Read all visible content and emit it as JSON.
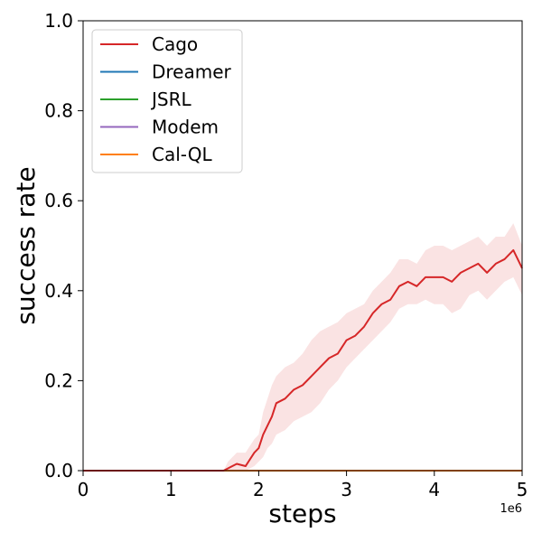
{
  "chart_data": {
    "type": "line",
    "xlabel": "steps",
    "ylabel": "success rate",
    "x_offset_label": "1e6",
    "xlim": [
      0,
      5
    ],
    "ylim": [
      0,
      1.0
    ],
    "x_ticks": [
      "0",
      "1",
      "2",
      "3",
      "4",
      "5"
    ],
    "y_ticks": [
      "0.0",
      "0.2",
      "0.4",
      "0.6",
      "0.8",
      "1.0"
    ],
    "grid": false,
    "legend_position": "top-left",
    "series": [
      {
        "name": "Cago",
        "color": "#d62728",
        "x": [
          0,
          1.6,
          1.65,
          1.75,
          1.85,
          1.95,
          2.0,
          2.05,
          2.1,
          2.15,
          2.2,
          2.3,
          2.4,
          2.5,
          2.6,
          2.7,
          2.8,
          2.9,
          3.0,
          3.1,
          3.2,
          3.3,
          3.4,
          3.5,
          3.6,
          3.7,
          3.8,
          3.9,
          4.0,
          4.1,
          4.2,
          4.3,
          4.4,
          4.5,
          4.6,
          4.7,
          4.8,
          4.9,
          5.0
        ],
        "y": [
          0,
          0,
          0.005,
          0.015,
          0.01,
          0.04,
          0.05,
          0.08,
          0.1,
          0.12,
          0.15,
          0.16,
          0.18,
          0.19,
          0.21,
          0.23,
          0.25,
          0.26,
          0.29,
          0.3,
          0.32,
          0.35,
          0.37,
          0.38,
          0.41,
          0.42,
          0.41,
          0.43,
          0.43,
          0.43,
          0.42,
          0.44,
          0.45,
          0.46,
          0.44,
          0.46,
          0.47,
          0.49,
          0.45
        ],
        "lower": [
          0,
          0,
          0,
          0,
          0,
          0.01,
          0.02,
          0.03,
          0.05,
          0.06,
          0.08,
          0.09,
          0.11,
          0.12,
          0.13,
          0.15,
          0.18,
          0.2,
          0.23,
          0.25,
          0.27,
          0.29,
          0.31,
          0.33,
          0.36,
          0.37,
          0.37,
          0.38,
          0.37,
          0.37,
          0.35,
          0.36,
          0.39,
          0.4,
          0.38,
          0.4,
          0.42,
          0.43,
          0.39
        ],
        "upper": [
          0,
          0,
          0.02,
          0.04,
          0.04,
          0.07,
          0.08,
          0.13,
          0.16,
          0.19,
          0.21,
          0.23,
          0.24,
          0.26,
          0.29,
          0.31,
          0.32,
          0.33,
          0.35,
          0.36,
          0.37,
          0.4,
          0.42,
          0.44,
          0.47,
          0.47,
          0.46,
          0.49,
          0.5,
          0.5,
          0.49,
          0.5,
          0.51,
          0.52,
          0.5,
          0.52,
          0.52,
          0.55,
          0.5
        ]
      },
      {
        "name": "Dreamer",
        "color": "#1f77b4",
        "x": [
          0,
          5
        ],
        "y": [
          0,
          0
        ]
      },
      {
        "name": "JSRL",
        "color": "#2ca02c",
        "x": [
          0,
          5
        ],
        "y": [
          0,
          0
        ]
      },
      {
        "name": "Modem",
        "color": "#9467bd",
        "x": [
          0,
          5
        ],
        "y": [
          0,
          0
        ]
      },
      {
        "name": "Cal-QL",
        "color": "#ff7f0e",
        "x": [
          0,
          5
        ],
        "y": [
          0,
          0
        ]
      }
    ]
  }
}
